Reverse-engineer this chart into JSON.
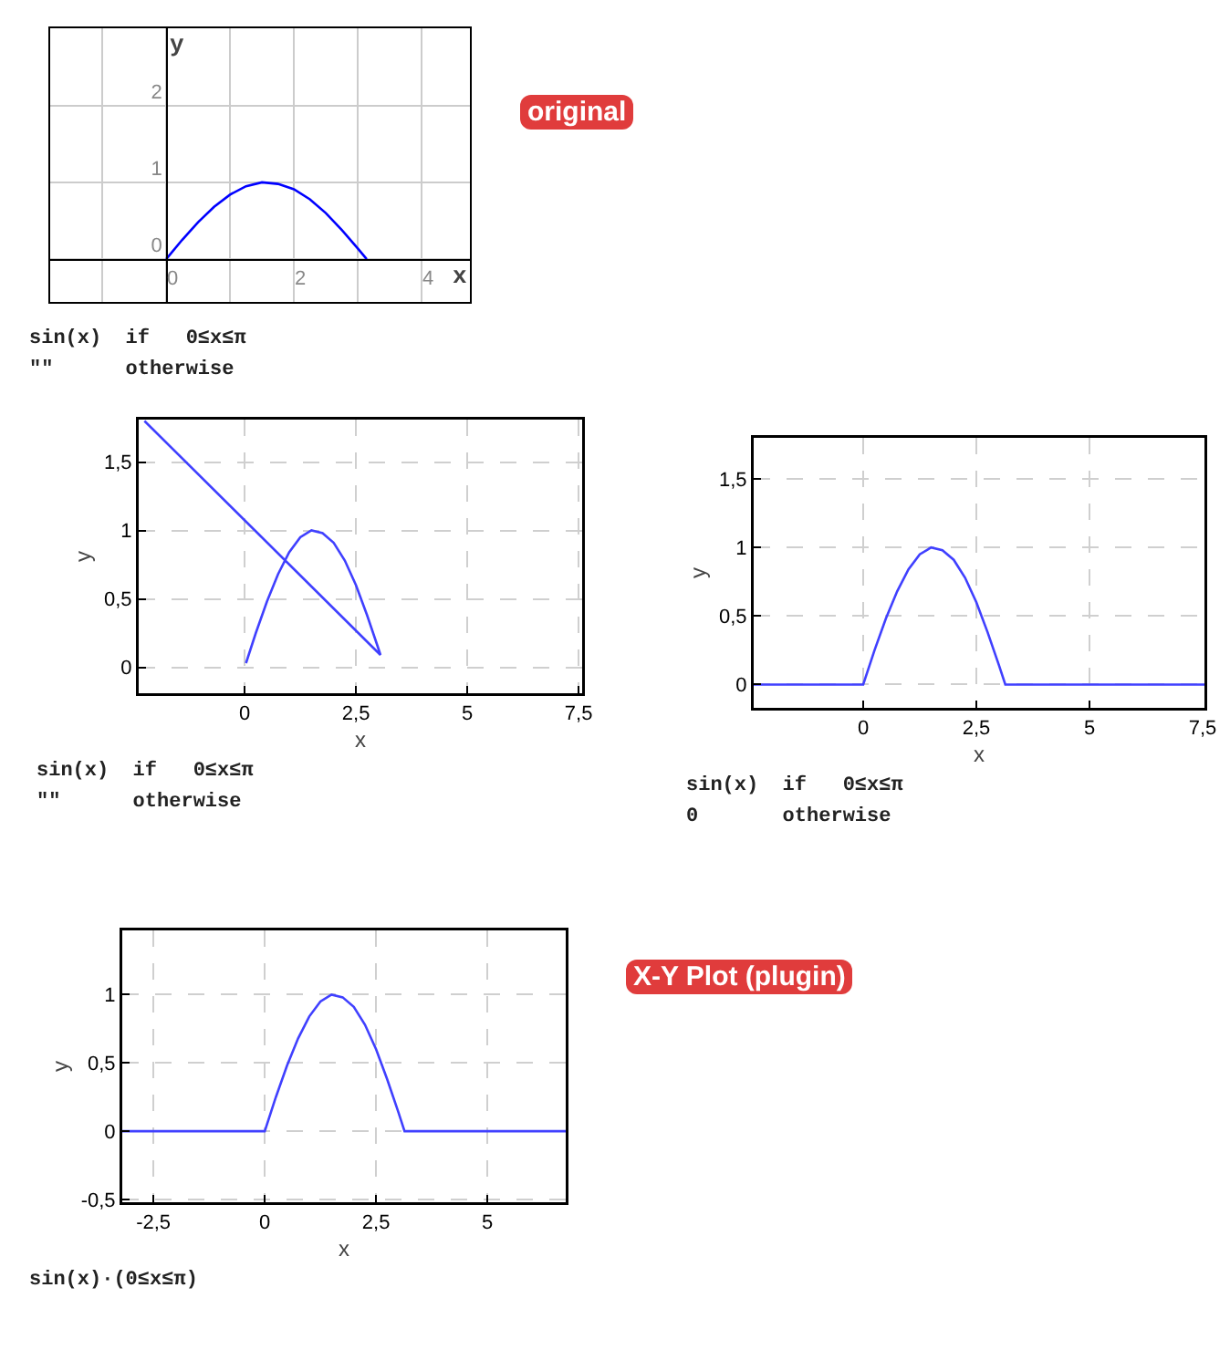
{
  "chart_data": [
    {
      "type": "line",
      "xlabel": "x",
      "ylabel": "y",
      "grid": true,
      "xlim": [
        -1.83,
        4.77
      ],
      "ylim": [
        -0.57,
        3.02
      ],
      "xticks": [
        {
          "value": -1,
          "label": null
        },
        0,
        {
          "value": 1,
          "label": null
        },
        2,
        {
          "value": 3,
          "label": null
        },
        4
      ],
      "yticks": [
        0,
        1,
        2
      ],
      "series": [
        {
          "color": "#0000ff",
          "x": [
            0,
            0.25,
            0.5,
            0.75,
            1,
            1.25,
            1.5,
            1.75,
            2,
            2.25,
            2.5,
            2.75,
            3,
            3.14
          ],
          "values": [
            0,
            0.25,
            0.48,
            0.68,
            0.84,
            0.95,
            1,
            0.98,
            0.91,
            0.78,
            0.6,
            0.38,
            0.14,
            0
          ]
        }
      ],
      "annotations": [
        "sin(x)  if   0≤x≤π",
        "\"\"      otherwise"
      ]
    },
    {
      "type": "other",
      "title": "original"
    },
    {
      "type": "line",
      "xlabel": "x",
      "ylabel": "y",
      "grid": true,
      "xlim": [
        -2.38,
        7.58
      ],
      "ylim": [
        -0.19,
        1.81
      ],
      "xticks": [
        0,
        {
          "value": 2.5,
          "label": "2,5"
        },
        5,
        {
          "value": 7.5,
          "label": "7,5"
        }
      ],
      "yticks": [
        0,
        {
          "value": 0.5,
          "label": "0,5"
        },
        1,
        {
          "value": 1.5,
          "label": "1,5"
        }
      ],
      "series": [
        {
          "color": "#4040ff",
          "x": [
            0.03,
            0.25,
            0.5,
            0.75,
            1,
            1.25,
            1.5,
            1.75,
            2,
            2.25,
            2.5,
            2.75,
            3,
            3.05,
            -2.25
          ],
          "values": [
            0.03,
            0.25,
            0.48,
            0.68,
            0.84,
            0.95,
            1,
            0.98,
            0.91,
            0.78,
            0.6,
            0.38,
            0.14,
            0.09,
            1.8
          ]
        }
      ],
      "annotations": [
        "sin(x)  if   0≤x≤π",
        "\"\"      otherwise"
      ]
    },
    {
      "type": "line",
      "xlabel": "x",
      "ylabel": "y",
      "grid": true,
      "xlim": [
        -2.42,
        7.54
      ],
      "ylim": [
        -0.17,
        1.8
      ],
      "xticks": [
        0,
        {
          "value": 2.5,
          "label": "2,5"
        },
        5,
        {
          "value": 7.5,
          "label": "7,5"
        }
      ],
      "yticks": [
        0,
        {
          "value": 0.5,
          "label": "0,5"
        },
        1,
        {
          "value": 1.5,
          "label": "1,5"
        }
      ],
      "series": [
        {
          "color": "#4040ff",
          "x": [
            -2.42,
            0,
            0.25,
            0.5,
            0.75,
            1,
            1.25,
            1.5,
            1.75,
            2,
            2.25,
            2.5,
            2.75,
            3,
            3.14,
            7.54
          ],
          "values": [
            0,
            0,
            0.25,
            0.48,
            0.68,
            0.84,
            0.95,
            1,
            0.98,
            0.91,
            0.78,
            0.6,
            0.38,
            0.14,
            0,
            0
          ]
        }
      ],
      "annotations": [
        "sin(x)  if   0≤x≤π",
        "0       otherwise"
      ]
    },
    {
      "type": "line",
      "xlabel": "x",
      "ylabel": "y",
      "grid": true,
      "xlim": [
        -3.2,
        6.76
      ],
      "ylim": [
        -0.52,
        1.47
      ],
      "xticks": [
        {
          "value": -2.5,
          "label": "-2,5"
        },
        0,
        {
          "value": 2.5,
          "label": "2,5"
        },
        5
      ],
      "yticks": [
        {
          "value": -0.5,
          "label": "-0,5"
        },
        0,
        {
          "value": 0.5,
          "label": "0,5"
        },
        1
      ],
      "series": [
        {
          "color": "#4040ff",
          "x": [
            -3.2,
            0,
            0.25,
            0.5,
            0.75,
            1,
            1.25,
            1.5,
            1.75,
            2,
            2.25,
            2.5,
            2.75,
            3,
            3.14,
            6.76
          ],
          "values": [
            0,
            0,
            0.25,
            0.48,
            0.68,
            0.84,
            0.95,
            1,
            0.98,
            0.91,
            0.78,
            0.6,
            0.38,
            0.14,
            0,
            0
          ]
        }
      ],
      "annotations": [
        "sin(x)·(0≤x≤π)"
      ]
    },
    {
      "type": "other",
      "title": "X-Y Plot (plugin)"
    }
  ]
}
